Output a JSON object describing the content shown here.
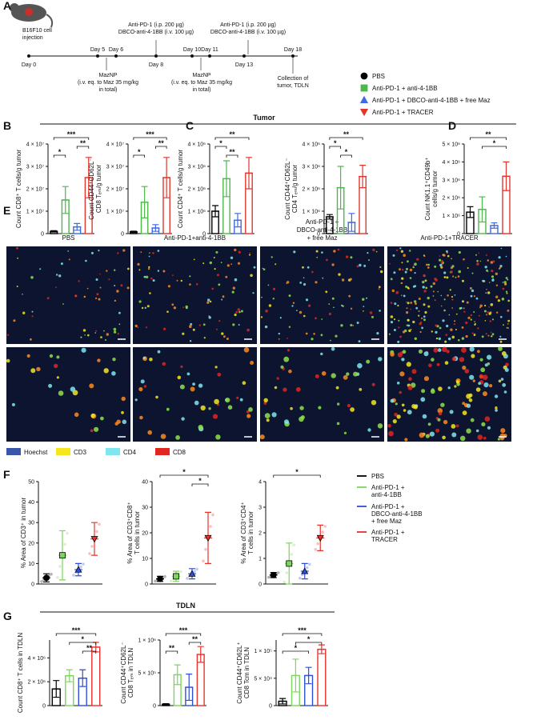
{
  "panel_labels": [
    "A",
    "B",
    "C",
    "D",
    "E",
    "F",
    "G"
  ],
  "section_titles": [
    "Tumor",
    "TDLN"
  ],
  "timeline": {
    "days": [
      "Day 0",
      "Day 5",
      "Day 6",
      "Day 8",
      "Day 10",
      "Day 11",
      "Day 13",
      "Day 18"
    ],
    "events": [
      {
        "lines": [
          "B16F10 cell",
          "injection"
        ]
      },
      {
        "lines": [
          "Anti-PD-1 (i.p. 200 µg)",
          "DBCO-anti-4-1BB (i.v. 100 µg)"
        ]
      },
      {
        "lines": [
          "Anti-PD-1 (i.p. 200 µg)",
          "DBCO-anti-4-1BB (i.v. 100 µg)"
        ]
      },
      {
        "lines": [
          "MazNP",
          "(i.v. eq. to Maz 35 mg/kg",
          "in total)"
        ]
      },
      {
        "lines": [
          "MazNP",
          "(i.v. eq. to Maz 35 mg/kg",
          "in total)"
        ]
      },
      {
        "lines": [
          "Collection of",
          "tumor, TDLN"
        ]
      }
    ]
  },
  "legend": {
    "items": [
      {
        "name": "PBS",
        "color": "#000000"
      },
      {
        "name": "Anti-PD-1 + anti-4-1BB",
        "color": "#4db84a"
      },
      {
        "name": "Anti-PD-1 + DBCO-anti-4-1BB + free Maz",
        "color": "#3d6be0"
      },
      {
        "name": "Anti-PD-1 + TRACER",
        "color": "#e0362c"
      }
    ]
  },
  "images": {
    "columns": [
      [
        "PBS"
      ],
      [
        "Anti-PD-1+anti-4-1BB"
      ],
      [
        "Anti-PD-1 +",
        "DBCO-anti-4-1BB",
        "+ free Maz"
      ],
      [
        "Anti-PD-1+TRACER"
      ]
    ],
    "legend": [
      {
        "name": "Hoechst",
        "color": "#3a56a8"
      },
      {
        "name": "CD3",
        "color": "#f5e61e"
      },
      {
        "name": "CD4",
        "color": "#7fe6f0"
      },
      {
        "name": "CD8",
        "color": "#e0261e"
      }
    ]
  },
  "f_legend": [
    {
      "lines": [
        "PBS"
      ],
      "color": "#000000"
    },
    {
      "lines": [
        "Anti-PD-1 +",
        "anti-4-1BB"
      ],
      "color": "#7bd65a"
    },
    {
      "lines": [
        "Anti-PD-1 +",
        "DBCO-anti-4-1BB",
        "+ free Maz"
      ],
      "color": "#2d4fd8"
    },
    {
      "lines": [
        "Anti-PD-1 +",
        "TRACER"
      ],
      "color": "#e8322c"
    }
  ],
  "chart_data": [
    {
      "type": "bar",
      "ylabel": [
        "Count CD8⁺ T cells/g tumor"
      ],
      "categories": [
        null,
        null,
        null,
        null
      ],
      "values": [
        1000000,
        15000000,
        3000000,
        25000000
      ],
      "errors": [
        300000,
        6000000,
        1500000,
        9000000
      ],
      "colors": [
        "#000000",
        "#4db84a",
        "#3d6be0",
        "#e0362c"
      ],
      "ylim": [
        0,
        40000000
      ],
      "yticks": [
        0,
        {
          "value": 10000000,
          "label": "1 × 10⁷"
        },
        {
          "value": 20000000,
          "label": "2 × 10⁷"
        },
        {
          "value": 30000000,
          "label": "3 × 10⁷"
        },
        {
          "value": 40000000,
          "label": "4 × 10⁷"
        }
      ],
      "annotations": [
        "*",
        "***",
        "**"
      ]
    },
    {
      "type": "bar",
      "ylabel": [
        "Count CD44⁺CD62L⁻",
        "CD8 Tₑₘ/g tumor"
      ],
      "categories": [
        null,
        null,
        null,
        null
      ],
      "values": [
        800000,
        14000000,
        2500000,
        25000000
      ],
      "errors": [
        300000,
        7000000,
        1500000,
        9000000
      ],
      "colors": [
        "#000000",
        "#4db84a",
        "#3d6be0",
        "#e0362c"
      ],
      "ylim": [
        0,
        40000000
      ],
      "yticks": [
        0,
        {
          "value": 10000000,
          "label": "1 × 10⁷"
        },
        {
          "value": 20000000,
          "label": "2 × 10⁷"
        },
        {
          "value": 30000000,
          "label": "3 × 10⁷"
        },
        {
          "value": 40000000,
          "label": "4 × 10⁷"
        }
      ],
      "annotations": [
        "*",
        "***",
        "**"
      ]
    },
    {
      "type": "bar",
      "ylabel": [
        "Count CD4⁺ T cells/g tumor"
      ],
      "categories": [
        null,
        null,
        null,
        null
      ],
      "values": [
        1000000,
        2450000,
        600000,
        2700000
      ],
      "errors": [
        250000,
        800000,
        300000,
        700000
      ],
      "colors": [
        "#000000",
        "#4db84a",
        "#3d6be0",
        "#e0362c"
      ],
      "ylim": [
        0,
        4000000
      ],
      "yticks": [
        0,
        {
          "value": 1000000,
          "label": "1 × 10⁶"
        },
        {
          "value": 2000000,
          "label": "2 × 10⁶"
        },
        {
          "value": 3000000,
          "label": "3 × 10⁶"
        },
        {
          "value": 4000000,
          "label": "4 × 10⁶"
        }
      ],
      "annotations": [
        "**",
        "*",
        "**"
      ]
    },
    {
      "type": "bar",
      "ylabel": [
        "Count CD44⁺CD62L⁻",
        "CD4 Tₑₘ/g tumor"
      ],
      "categories": [
        null,
        null,
        null,
        null
      ],
      "values": [
        750000,
        2050000,
        500000,
        2550000
      ],
      "errors": [
        100000,
        950000,
        400000,
        500000
      ],
      "colors": [
        "#000000",
        "#4db84a",
        "#3d6be0",
        "#e0362c"
      ],
      "ylim": [
        0,
        4000000
      ],
      "yticks": [
        0,
        {
          "value": 1000000,
          "label": "1 × 10⁶"
        },
        {
          "value": 2000000,
          "label": "2 × 10⁶"
        },
        {
          "value": 3000000,
          "label": "3 × 10⁶"
        },
        {
          "value": 4000000,
          "label": "4 × 10⁶"
        }
      ],
      "annotations": [
        "**",
        "*",
        "*"
      ]
    },
    {
      "type": "bar",
      "ylabel": [
        "Count NK1.1⁺CD49b⁺",
        "cells/g tumor"
      ],
      "categories": [
        null,
        null,
        null,
        null
      ],
      "values": [
        1200000,
        1350000,
        450000,
        3200000
      ],
      "errors": [
        300000,
        700000,
        150000,
        800000
      ],
      "colors": [
        "#000000",
        "#4db84a",
        "#3d6be0",
        "#e0362c"
      ],
      "ylim": [
        0,
        5000000
      ],
      "yticks": [
        0,
        {
          "value": 1000000,
          "label": "1 × 10⁶"
        },
        {
          "value": 2000000,
          "label": "2 × 10⁶"
        },
        {
          "value": 3000000,
          "label": "3 × 10⁶"
        },
        {
          "value": 4000000,
          "label": "4 × 10⁶"
        },
        {
          "value": 5000000,
          "label": "5 × 10⁶"
        }
      ],
      "annotations": [
        "**",
        "*"
      ]
    },
    {
      "type": "dot",
      "ylabel": [
        "% Area of CD3⁺ in tumor"
      ],
      "categories": [
        null,
        null,
        null,
        null
      ],
      "values": [
        3,
        14,
        7,
        22
      ],
      "errors": [
        2,
        12,
        3,
        8
      ],
      "colors": [
        "#000000",
        "#7bd65a",
        "#2d4fd8",
        "#e8322c"
      ],
      "ylim": [
        0,
        50
      ],
      "yticks": [
        0,
        10,
        20,
        30,
        40,
        50
      ],
      "annotations": []
    },
    {
      "type": "dot",
      "ylabel": [
        "% Area of CD3⁺CD8⁺",
        "T cells in tumor"
      ],
      "categories": [
        null,
        null,
        null,
        null
      ],
      "values": [
        2,
        3,
        4,
        18
      ],
      "errors": [
        1,
        2,
        2,
        10
      ],
      "colors": [
        "#000000",
        "#7bd65a",
        "#2d4fd8",
        "#e8322c"
      ],
      "ylim": [
        0,
        40
      ],
      "yticks": [
        0,
        10,
        20,
        30,
        40
      ],
      "annotations": [
        "*",
        "*"
      ]
    },
    {
      "type": "dot",
      "ylabel": [
        "% Area of CD3⁺CD4⁺",
        "T cells in tumor"
      ],
      "categories": [
        null,
        null,
        null,
        null
      ],
      "values": [
        0.35,
        0.8,
        0.5,
        1.8
      ],
      "errors": [
        0.1,
        0.8,
        0.3,
        0.5
      ],
      "colors": [
        "#000000",
        "#7bd65a",
        "#2d4fd8",
        "#e8322c"
      ],
      "ylim": [
        0,
        4
      ],
      "yticks": [
        0,
        1,
        2,
        3,
        4
      ],
      "annotations": [
        "*"
      ]
    },
    {
      "type": "bar",
      "ylabel": [
        "Count CD8⁺ T cells in TDLN"
      ],
      "categories": [
        null,
        null,
        null,
        null
      ],
      "values": [
        1400000,
        2500000,
        2300000,
        4900000
      ],
      "errors": [
        700000,
        500000,
        700000,
        400000
      ],
      "colors": [
        "#000000",
        "#7bd65a",
        "#2d4fd8",
        "#e8322c"
      ],
      "ylim": [
        0,
        5500000
      ],
      "yticks": [
        0,
        {
          "value": 2000000,
          "label": "2 × 10⁶"
        },
        {
          "value": 4000000,
          "label": "4 × 10⁶"
        }
      ],
      "annotations": [
        "***",
        "*",
        "**"
      ]
    },
    {
      "type": "bar",
      "ylabel": [
        "Count CD44⁺CD62L⁻",
        "CD8 Tₑₘ in TDLN"
      ],
      "categories": [
        null,
        null,
        null,
        null
      ],
      "values": [
        20000,
        470000,
        280000,
        780000
      ],
      "errors": [
        10000,
        150000,
        200000,
        120000
      ],
      "colors": [
        "#000000",
        "#7bd65a",
        "#2d4fd8",
        "#e8322c"
      ],
      "ylim": [
        0,
        1000000
      ],
      "yticks": [
        0,
        {
          "value": 500000,
          "label": "5 × 10⁵"
        },
        {
          "value": 1000000,
          "label": "1 × 10⁶"
        }
      ],
      "annotations": [
        "**",
        "***",
        "**"
      ]
    },
    {
      "type": "bar",
      "ylabel": [
        "Count CD44⁺CD62L⁺",
        "CD8 Tcm in TDLN"
      ],
      "categories": [
        null,
        null,
        null,
        null
      ],
      "values": [
        8000,
        55000,
        55000,
        103000
      ],
      "errors": [
        5000,
        30000,
        15000,
        8000
      ],
      "colors": [
        "#000000",
        "#7bd65a",
        "#2d4fd8",
        "#e8322c"
      ],
      "ylim": [
        0,
        120000
      ],
      "yticks": [
        0,
        {
          "value": 50000,
          "label": "5 × 10⁴"
        },
        {
          "value": 100000,
          "label": "1 × 10⁵"
        }
      ],
      "annotations": [
        "*",
        "***",
        "*"
      ]
    }
  ]
}
